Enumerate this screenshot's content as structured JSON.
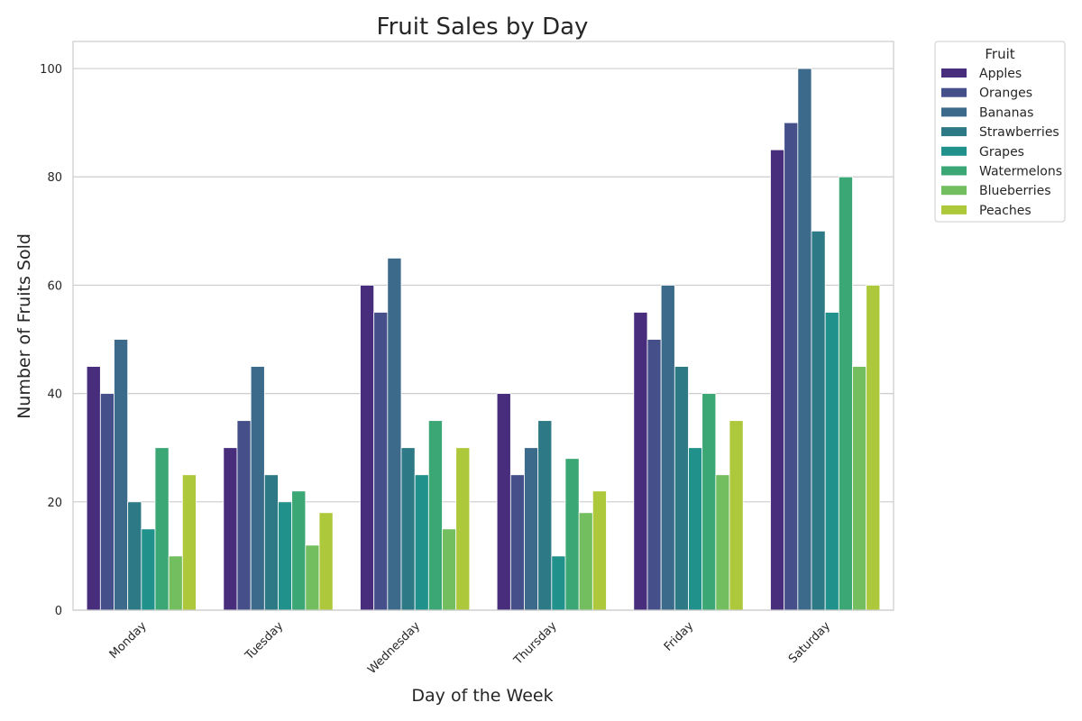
{
  "chart_data": {
    "type": "bar",
    "title": "Fruit Sales by Day",
    "xlabel": "Day of the Week",
    "ylabel": "Number of Fruits Sold",
    "ylim": [
      0,
      105
    ],
    "yticks": [
      0,
      20,
      40,
      60,
      80,
      100
    ],
    "grid": true,
    "legend_title": "Fruit",
    "legend_position": "outside-top-right",
    "categories": [
      "Monday",
      "Tuesday",
      "Wednesday",
      "Thursday",
      "Friday",
      "Saturday"
    ],
    "series": [
      {
        "name": "Apples",
        "color": "#472d7b",
        "values": [
          45,
          30,
          60,
          40,
          55,
          85
        ]
      },
      {
        "name": "Oranges",
        "color": "#45508a",
        "values": [
          40,
          35,
          55,
          25,
          50,
          90
        ]
      },
      {
        "name": "Bananas",
        "color": "#3b6a8b",
        "values": [
          50,
          45,
          65,
          30,
          60,
          100
        ]
      },
      {
        "name": "Strawberries",
        "color": "#2d7a86",
        "values": [
          20,
          25,
          30,
          35,
          45,
          70
        ]
      },
      {
        "name": "Grapes",
        "color": "#21918c",
        "values": [
          15,
          20,
          25,
          10,
          30,
          55
        ]
      },
      {
        "name": "Watermelons",
        "color": "#3aa775",
        "values": [
          30,
          22,
          35,
          28,
          40,
          80
        ]
      },
      {
        "name": "Blueberries",
        "color": "#73be5f",
        "values": [
          10,
          12,
          15,
          18,
          25,
          45
        ]
      },
      {
        "name": "Peaches",
        "color": "#aec83c",
        "values": [
          25,
          18,
          30,
          22,
          35,
          60
        ]
      }
    ]
  }
}
